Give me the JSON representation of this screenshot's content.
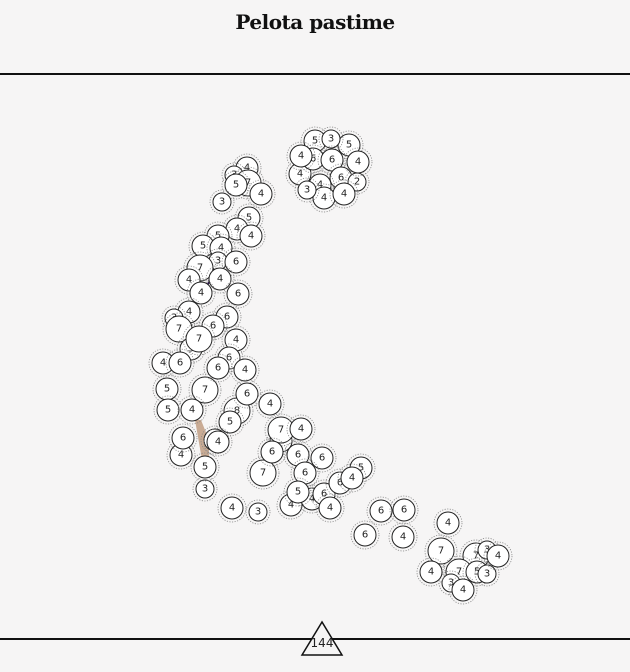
{
  "title": "Pelota pastime",
  "footer_badge": "144",
  "colors": {
    "background": "#f6f5f5",
    "line": "#111111",
    "dark_region": "#2e1650",
    "tan_region": "#c9ab94"
  },
  "nodes": [
    "4",
    "3",
    "7",
    "5",
    "4",
    "3",
    "5",
    "4",
    "5",
    "4",
    "5",
    "4",
    "3",
    "7",
    "6",
    "4",
    "4",
    "4",
    "6",
    "4",
    "3",
    "6",
    "7",
    "6",
    "5",
    "7",
    "4",
    "6",
    "4",
    "6",
    "5",
    "7",
    "4",
    "5",
    "4",
    "8",
    "6",
    "4",
    "6",
    "4",
    "5",
    "4",
    "3",
    "4",
    "4",
    "7",
    "6",
    "4",
    "7",
    "3",
    "4",
    "6",
    "6",
    "6",
    "5",
    "4",
    "6",
    "4",
    "6",
    "5",
    "5",
    "4",
    "6",
    "4",
    "6",
    "6",
    "4",
    "6",
    "4",
    "7",
    "7",
    "7",
    "5",
    "3",
    "3",
    "4",
    "4",
    "3",
    "4",
    "5",
    "4",
    "6",
    "5",
    "3",
    "4",
    "6",
    "6",
    "4",
    "2",
    "4",
    "4",
    "3",
    "4"
  ]
}
